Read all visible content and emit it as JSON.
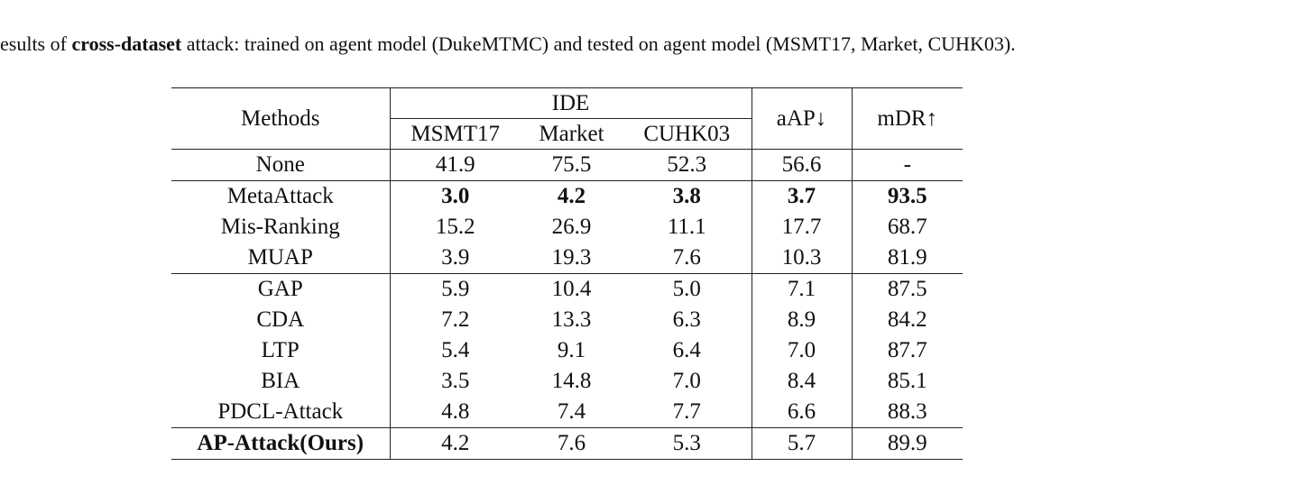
{
  "caption": {
    "prefix": "esults of ",
    "bold": "cross-dataset",
    "suffix": " attack: trained on agent model (DukeMTMC) and tested on agent model (MSMT17, Market, CUHK03)."
  },
  "table": {
    "header": {
      "methods": "Methods",
      "group": "IDE",
      "aap": "aAP↓",
      "mdr": "mDR↑",
      "sub": [
        "MSMT17",
        "Market",
        "CUHK03"
      ]
    },
    "rows": [
      {
        "method": "None",
        "values": [
          "41.9",
          "75.5",
          "52.3",
          "56.6",
          "-"
        ]
      },
      {
        "method": "MetaAttack",
        "values": [
          "3.0",
          "4.2",
          "3.8",
          "3.7",
          "93.5"
        ]
      },
      {
        "method": "Mis-Ranking",
        "values": [
          "15.2",
          "26.9",
          "11.1",
          "17.7",
          "68.7"
        ]
      },
      {
        "method": "MUAP",
        "values": [
          "3.9",
          "19.3",
          "7.6",
          "10.3",
          "81.9"
        ]
      },
      {
        "method": "GAP",
        "values": [
          "5.9",
          "10.4",
          "5.0",
          "7.1",
          "87.5"
        ]
      },
      {
        "method": "CDA",
        "values": [
          "7.2",
          "13.3",
          "6.3",
          "8.9",
          "84.2"
        ]
      },
      {
        "method": "LTP",
        "values": [
          "5.4",
          "9.1",
          "6.4",
          "7.0",
          "87.7"
        ]
      },
      {
        "method": "BIA",
        "values": [
          "3.5",
          "14.8",
          "7.0",
          "8.4",
          "85.1"
        ]
      },
      {
        "method": "PDCL-Attack",
        "values": [
          "4.8",
          "7.4",
          "7.7",
          "6.6",
          "88.3"
        ]
      },
      {
        "method": "AP-Attack(Ours)",
        "values": [
          "4.2",
          "7.6",
          "5.3",
          "5.7",
          "89.9"
        ]
      }
    ]
  }
}
